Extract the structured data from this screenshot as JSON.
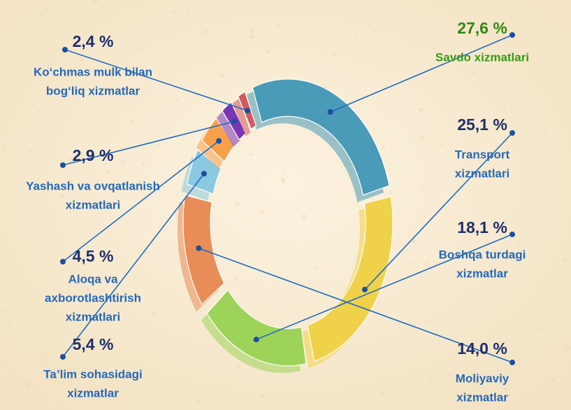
{
  "chart_data": {
    "type": "pie",
    "title": "",
    "slices": [
      {
        "label_lines": [
          "Savdo xizmatlari"
        ],
        "value_text": "27,6 %",
        "value": 27.6,
        "color": "#4a9bb8",
        "highlight": true
      },
      {
        "label_lines": [
          "Transport",
          "xizmatlari"
        ],
        "value_text": "25,1 %",
        "value": 25.1,
        "color": "#f0d24a",
        "highlight": false
      },
      {
        "label_lines": [
          "Boshqa turdagi",
          "xizmatlar"
        ],
        "value_text": "18,1 %",
        "value": 18.1,
        "color": "#9ed35a",
        "highlight": false
      },
      {
        "label_lines": [
          "Moliyaviy",
          "xizmatlar"
        ],
        "value_text": "14,0 %",
        "value": 14.0,
        "color": "#e88d58",
        "highlight": false
      },
      {
        "label_lines": [
          "Ta’lim sohasidagi",
          "xizmatlar"
        ],
        "value_text": "5,4 %",
        "value": 5.4,
        "color": "#8ac9df",
        "highlight": false
      },
      {
        "label_lines": [
          "Aloqa va",
          "axborotlashtirish",
          "xizmatlari"
        ],
        "value_text": "4,5 %",
        "value": 4.5,
        "color": "#f7a04a",
        "highlight": false
      },
      {
        "label_lines": [
          "Yashash va ovqatlanish",
          "xizmatlari"
        ],
        "value_text": "2,9 %",
        "value": 2.9,
        "color": "#7a35b5",
        "highlight": false
      },
      {
        "label_lines": [
          "Ko‘chmas mulk bilan",
          "bog‘liq xizmatlar"
        ],
        "value_text": "2,4 %",
        "value": 2.4,
        "color": "#d25a5f",
        "highlight": false
      }
    ]
  }
}
